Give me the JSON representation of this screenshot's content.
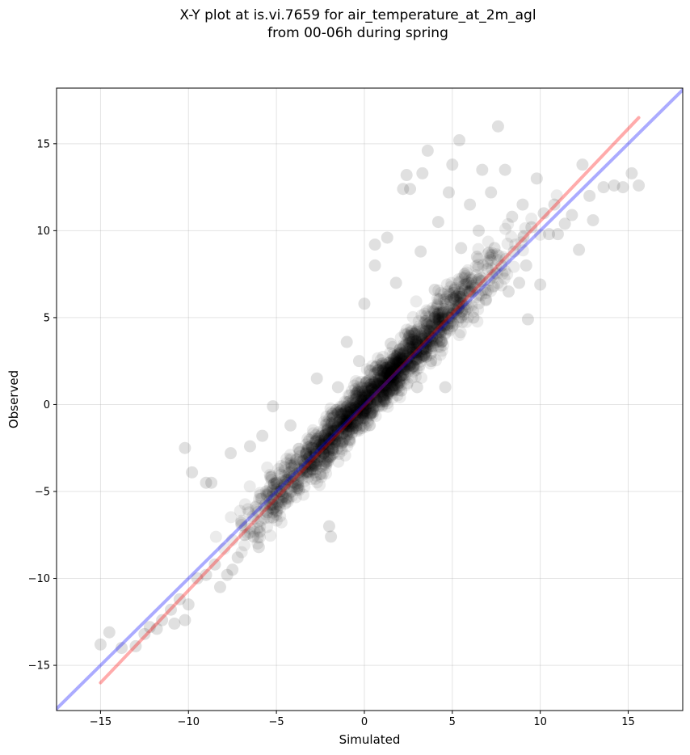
{
  "chart_data": {
    "type": "scatter",
    "title": "X-Y plot at is.vi.7659 for air_temperature_at_2m_agl",
    "subtitle": "from 00-06h during spring",
    "xlabel": "Simulated",
    "ylabel": "Observed",
    "xlim": [
      -17.5,
      18.1
    ],
    "ylim": [
      -17.6,
      18.2
    ],
    "xticks": [
      -15,
      -10,
      -5,
      0,
      5,
      10,
      15
    ],
    "yticks": [
      -15,
      -10,
      -5,
      0,
      5,
      10,
      15
    ],
    "xtick_labels": [
      "−15",
      "−10",
      "−5",
      "0",
      "5",
      "10",
      "15"
    ],
    "ytick_labels": [
      "−15",
      "−10",
      "−5",
      "0",
      "5",
      "10",
      "15"
    ],
    "grid": true,
    "point_color": "#000000",
    "point_alpha": 0.08,
    "lines": [
      {
        "kind": "regression",
        "color": "#ff0000",
        "x": [
          -15.0,
          15.6
        ],
        "y": [
          -16.0,
          16.5
        ]
      },
      {
        "kind": "one-to-one",
        "color": "#0000ff",
        "x": [
          -17.5,
          18.1
        ],
        "y": [
          -17.5,
          18.1
        ]
      }
    ],
    "sampled_points": [
      [
        -15.0,
        -13.8
      ],
      [
        -14.5,
        -13.1
      ],
      [
        -13.8,
        -14.0
      ],
      [
        -13.0,
        -13.9
      ],
      [
        -12.5,
        -13.2
      ],
      [
        -12.2,
        -12.8
      ],
      [
        -11.8,
        -12.9
      ],
      [
        -11.5,
        -12.4
      ],
      [
        -11.0,
        -11.8
      ],
      [
        -10.8,
        -12.6
      ],
      [
        -10.5,
        -11.2
      ],
      [
        -10.2,
        -12.4
      ],
      [
        -10.0,
        -11.5
      ],
      [
        -10.2,
        -2.5
      ],
      [
        -9.8,
        -3.9
      ],
      [
        -9.5,
        -10.0
      ],
      [
        -9.0,
        -9.8
      ],
      [
        -9.0,
        -4.5
      ],
      [
        -8.7,
        -4.5
      ],
      [
        -8.5,
        -9.2
      ],
      [
        -8.2,
        -10.5
      ],
      [
        -7.8,
        -9.8
      ],
      [
        -7.6,
        -2.8
      ],
      [
        -7.5,
        -9.5
      ],
      [
        -7.2,
        -8.8
      ],
      [
        -7.0,
        -6.8
      ],
      [
        -6.8,
        -7.5
      ],
      [
        -6.5,
        -2.4
      ],
      [
        -6.3,
        -7.6
      ],
      [
        -6.0,
        -8.2
      ],
      [
        -5.8,
        -1.8
      ],
      [
        -5.5,
        -6.2
      ],
      [
        -5.2,
        -6.5
      ],
      [
        -5.0,
        -4.5
      ],
      [
        -5.2,
        -0.1
      ],
      [
        -4.8,
        -5.0
      ],
      [
        -4.5,
        -5.7
      ],
      [
        -4.2,
        -1.2
      ],
      [
        -4.0,
        -4.1
      ],
      [
        -3.8,
        -4.8
      ],
      [
        -3.5,
        -3.2
      ],
      [
        -3.3,
        -3.9
      ],
      [
        -3.0,
        -2.5
      ],
      [
        -2.8,
        -3.5
      ],
      [
        -2.7,
        1.5
      ],
      [
        -2.5,
        -4.0
      ],
      [
        -2.3,
        -1.8
      ],
      [
        -2.0,
        -2.0
      ],
      [
        -2.0,
        -7.0
      ],
      [
        -1.9,
        -7.6
      ],
      [
        -1.8,
        -2.6
      ],
      [
        -1.5,
        -1.2
      ],
      [
        -1.5,
        1.0
      ],
      [
        -1.3,
        -0.5
      ],
      [
        -1.0,
        -1.5
      ],
      [
        -1.0,
        3.6
      ],
      [
        -0.8,
        -0.2
      ],
      [
        -0.5,
        0.3
      ],
      [
        -0.5,
        -1.0
      ],
      [
        -0.3,
        2.5
      ],
      [
        0.0,
        0.0
      ],
      [
        0.0,
        5.8
      ],
      [
        0.2,
        0.8
      ],
      [
        0.4,
        -0.5
      ],
      [
        0.5,
        1.3
      ],
      [
        0.6,
        9.2
      ],
      [
        0.6,
        8.0
      ],
      [
        0.8,
        2.0
      ],
      [
        1.0,
        1.0
      ],
      [
        1.2,
        0.2
      ],
      [
        1.3,
        9.6
      ],
      [
        1.4,
        2.4
      ],
      [
        1.5,
        3.5
      ],
      [
        1.6,
        1.6
      ],
      [
        1.8,
        7.0
      ],
      [
        2.0,
        2.5
      ],
      [
        2.1,
        0.8
      ],
      [
        2.2,
        12.4
      ],
      [
        2.4,
        13.2
      ],
      [
        2.5,
        3.0
      ],
      [
        2.6,
        12.4
      ],
      [
        2.8,
        2.2
      ],
      [
        3.0,
        3.5
      ],
      [
        3.0,
        1.0
      ],
      [
        3.2,
        8.8
      ],
      [
        3.3,
        13.3
      ],
      [
        3.5,
        3.5
      ],
      [
        3.5,
        4.8
      ],
      [
        3.6,
        14.6
      ],
      [
        3.8,
        2.5
      ],
      [
        4.0,
        5.0
      ],
      [
        4.0,
        6.6
      ],
      [
        4.2,
        10.5
      ],
      [
        4.4,
        3.6
      ],
      [
        4.5,
        5.5
      ],
      [
        4.6,
        1.0
      ],
      [
        4.8,
        12.2
      ],
      [
        5.0,
        4.5
      ],
      [
        5.0,
        13.8
      ],
      [
        5.2,
        6.2
      ],
      [
        5.4,
        15.2
      ],
      [
        5.5,
        5.0
      ],
      [
        5.5,
        9.0
      ],
      [
        5.7,
        7.5
      ],
      [
        6.0,
        6.5
      ],
      [
        6.0,
        11.5
      ],
      [
        6.2,
        5.0
      ],
      [
        6.4,
        8.5
      ],
      [
        6.5,
        7.2
      ],
      [
        6.5,
        10.0
      ],
      [
        6.7,
        13.5
      ],
      [
        6.9,
        6.0
      ],
      [
        7.0,
        7.8
      ],
      [
        7.2,
        12.2
      ],
      [
        7.4,
        9.0
      ],
      [
        7.6,
        16.0
      ],
      [
        7.8,
        8.0
      ],
      [
        8.0,
        13.5
      ],
      [
        8.2,
        6.5
      ],
      [
        8.4,
        10.8
      ],
      [
        8.5,
        8.8
      ],
      [
        8.8,
        7.0
      ],
      [
        9.0,
        11.5
      ],
      [
        9.2,
        8.0
      ],
      [
        9.3,
        4.9
      ],
      [
        9.5,
        10.2
      ],
      [
        9.8,
        13.0
      ],
      [
        10.0,
        6.9
      ],
      [
        10.2,
        11.0
      ],
      [
        10.5,
        9.8
      ],
      [
        10.8,
        11.5
      ],
      [
        11.0,
        9.8
      ],
      [
        11.4,
        10.4
      ],
      [
        11.8,
        10.9
      ],
      [
        12.2,
        8.9
      ],
      [
        12.4,
        13.8
      ],
      [
        12.8,
        12.0
      ],
      [
        13.0,
        10.6
      ],
      [
        13.6,
        12.5
      ],
      [
        14.2,
        12.6
      ],
      [
        14.7,
        12.5
      ],
      [
        15.2,
        13.3
      ],
      [
        15.6,
        12.6
      ]
    ]
  }
}
